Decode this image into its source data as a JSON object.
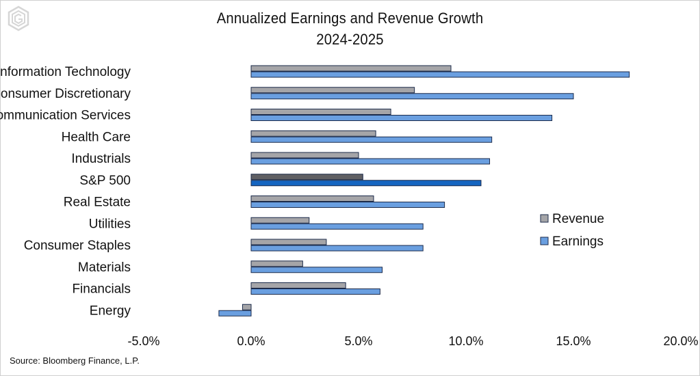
{
  "colors": {
    "revenue": "#a5a5a8",
    "earnings": "#6a9fe0",
    "sp_revenue": "#5f5f63",
    "sp_earnings": "#1565c0",
    "outline": "#1b2a4a"
  },
  "logo_icon": "hexagon-g-logo-icon",
  "source": "Source: Bloomberg Finance, L.P.",
  "chart_data": {
    "type": "bar",
    "orientation": "horizontal",
    "title": "Annualized Earnings and Revenue Growth",
    "subtitle": "2024-2025",
    "categories": [
      "Information Technology",
      "Consumer Discretionary",
      "Communication Services",
      "Health Care",
      "Industrials",
      "S&P 500",
      "Real Estate",
      "Utilities",
      "Consumer Staples",
      "Materials",
      "Financials",
      "Energy"
    ],
    "highlight_category": "S&P 500",
    "series": [
      {
        "name": "Revenue",
        "values": [
          9.3,
          7.6,
          6.5,
          5.8,
          5.0,
          5.2,
          5.7,
          2.7,
          3.5,
          2.4,
          4.4,
          -0.4
        ]
      },
      {
        "name": "Earnings",
        "values": [
          17.6,
          15.0,
          14.0,
          11.2,
          11.1,
          10.7,
          9.0,
          8.0,
          8.0,
          6.1,
          6.0,
          -1.5
        ]
      }
    ],
    "xlim": [
      -5,
      20
    ],
    "xticks": [
      -5,
      0,
      5,
      10,
      15,
      20
    ],
    "xtick_labels": [
      "-5.0%",
      "0.0%",
      "5.0%",
      "10.0%",
      "15.0%",
      "20.0%"
    ],
    "legend": [
      "Revenue",
      "Earnings"
    ],
    "legend_position": "right",
    "grid": false
  }
}
